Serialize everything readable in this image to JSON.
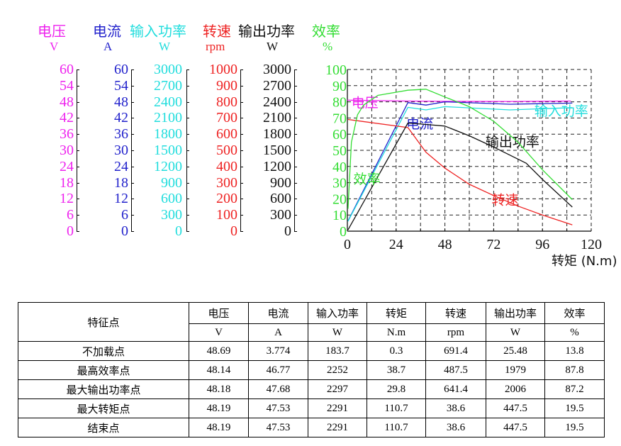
{
  "axes_legend": [
    {
      "name": "电压",
      "unit": "V",
      "color": "#ee22ee",
      "ticks": [
        "60",
        "54",
        "48",
        "42",
        "36",
        "30",
        "24",
        "18",
        "12",
        "6",
        "0"
      ]
    },
    {
      "name": "电流",
      "unit": "A",
      "color": "#2222cc",
      "ticks": [
        "60",
        "54",
        "48",
        "42",
        "36",
        "30",
        "24",
        "18",
        "12",
        "6",
        "0"
      ]
    },
    {
      "name": "输入功率",
      "unit": "W",
      "color": "#22dddd",
      "ticks": [
        "3000",
        "2700",
        "2400",
        "2100",
        "1800",
        "1500",
        "1200",
        "900",
        "600",
        "300",
        "0"
      ]
    },
    {
      "name": "转速",
      "unit": "rpm",
      "color": "#ee2222",
      "ticks": [
        "1000",
        "900",
        "800",
        "700",
        "600",
        "500",
        "400",
        "300",
        "200",
        "100",
        "0"
      ]
    },
    {
      "name": "输出功率",
      "unit": "W",
      "color": "#111111",
      "ticks": [
        "3000",
        "2700",
        "2400",
        "2100",
        "1800",
        "1500",
        "1200",
        "900",
        "600",
        "300",
        "0"
      ]
    },
    {
      "name": "效率",
      "unit": "%",
      "color": "#33dd33",
      "ticks": [
        "100",
        "90",
        "80",
        "70",
        "60",
        "50",
        "40",
        "30",
        "20",
        "10",
        "0"
      ]
    }
  ],
  "chart_data": {
    "type": "line",
    "title": "",
    "xlabel": "转矩 (N.m)",
    "ylabel": "效率 %",
    "x_ticks": [
      "0",
      "24",
      "48",
      "72",
      "96",
      "120"
    ],
    "xlim": [
      0,
      120
    ],
    "ylim": [
      0,
      100
    ],
    "grid": true,
    "grid_style": "dashed",
    "legend_position": "inline labels",
    "series": [
      {
        "name": "电压",
        "unit": "V",
        "color": "#ee22ee",
        "label_pos": [
          2,
          80
        ],
        "x": [
          0,
          30,
          48,
          80,
          110
        ],
        "y_pct": [
          81,
          80.5,
          80.3,
          80.2,
          80.5
        ],
        "y_actual": [
          48.69,
          48.18,
          48.14,
          48.15,
          48.19
        ]
      },
      {
        "name": "电流",
        "unit": "A",
        "color": "#2222cc",
        "label_pos": [
          29,
          67
        ],
        "x": [
          0.3,
          29.8,
          38.7,
          48,
          80,
          110.7
        ],
        "y_pct": [
          6.3,
          79.5,
          78,
          80,
          78.5,
          79.2
        ],
        "y_actual": [
          3.774,
          47.68,
          46.77,
          48,
          47.1,
          47.53
        ]
      },
      {
        "name": "输入功率",
        "unit": "W",
        "color": "#22dddd",
        "label_pos": [
          92,
          75
        ],
        "x": [
          0.3,
          29.8,
          38.7,
          48,
          80,
          110.7
        ],
        "y_pct": [
          6.1,
          76.6,
          75,
          77,
          75,
          76.4
        ],
        "y_actual": [
          183.7,
          2297,
          2252,
          2310,
          2250,
          2291
        ]
      },
      {
        "name": "转速",
        "unit": "rpm",
        "color": "#ee2222",
        "label_pos": [
          71,
          20
        ],
        "x": [
          0.3,
          29.8,
          38.7,
          48,
          60,
          72,
          84,
          96,
          110.7
        ],
        "y_pct": [
          69.1,
          64.1,
          48.8,
          39,
          29,
          22,
          15.5,
          10,
          3.9
        ],
        "y_actual": [
          691.4,
          641.4,
          487.5,
          390,
          290,
          220,
          155,
          100,
          38.6
        ]
      },
      {
        "name": "输出功率",
        "unit": "W",
        "color": "#111111",
        "label_pos": [
          68,
          56
        ],
        "x": [
          0.3,
          29.8,
          38.7,
          48,
          60,
          72,
          88,
          96,
          110.7
        ],
        "y_pct": [
          0.8,
          66.9,
          66,
          65,
          59,
          52,
          42,
          32,
          14.9
        ],
        "y_actual": [
          25.48,
          2006,
          1979,
          1950,
          1770,
          1560,
          1260,
          960,
          447.5
        ]
      },
      {
        "name": "效率",
        "unit": "%",
        "color": "#33dd33",
        "label_pos": [
          3,
          33
        ],
        "x": [
          0.3,
          2,
          5,
          8,
          15,
          29.8,
          38.7,
          48,
          60,
          72,
          84,
          96,
          110.7
        ],
        "y_pct": [
          13.8,
          55,
          72,
          78,
          84,
          87.2,
          87.8,
          83,
          77,
          68,
          55,
          38,
          19.5
        ],
        "y_actual": [
          13.8,
          55,
          72,
          78,
          84,
          87.2,
          87.8,
          83,
          77,
          68,
          55,
          38,
          19.5
        ]
      }
    ]
  },
  "table": {
    "header_label": "特征点",
    "columns": [
      {
        "name": "电压",
        "unit": "V"
      },
      {
        "name": "电流",
        "unit": "A"
      },
      {
        "name": "输入功率",
        "unit": "W"
      },
      {
        "name": "转矩",
        "unit": "N.m"
      },
      {
        "name": "转速",
        "unit": "rpm"
      },
      {
        "name": "输出功率",
        "unit": "W"
      },
      {
        "name": "效率",
        "unit": "%"
      }
    ],
    "rows": [
      {
        "label": "不加载点",
        "values": [
          "48.69",
          "3.774",
          "183.7",
          "0.3",
          "691.4",
          "25.48",
          "13.8"
        ]
      },
      {
        "label": "最高效率点",
        "values": [
          "48.14",
          "46.77",
          "2252",
          "38.7",
          "487.5",
          "1979",
          "87.8"
        ]
      },
      {
        "label": "最大输出功率点",
        "values": [
          "48.18",
          "47.68",
          "2297",
          "29.8",
          "641.4",
          "2006",
          "87.2"
        ]
      },
      {
        "label": "最大转矩点",
        "values": [
          "48.19",
          "47.53",
          "2291",
          "110.7",
          "38.6",
          "447.5",
          "19.5"
        ]
      },
      {
        "label": "结束点",
        "values": [
          "48.19",
          "47.53",
          "2291",
          "110.7",
          "38.6",
          "447.5",
          "19.5"
        ]
      }
    ]
  }
}
